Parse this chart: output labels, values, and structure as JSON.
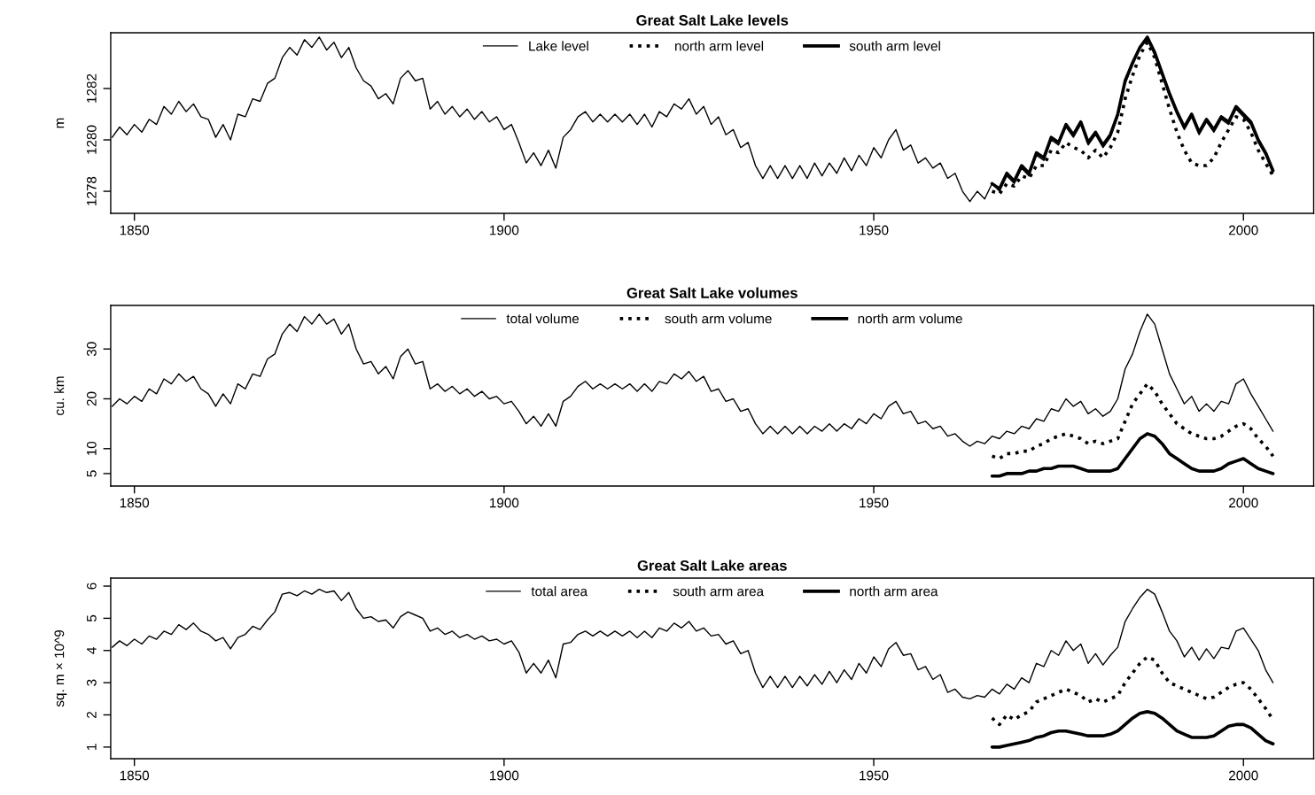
{
  "chart_data": [
    {
      "type": "line",
      "title": "Great Salt Lake levels",
      "ylabel": "m",
      "xlim": [
        1846.8,
        2009.5
      ],
      "xticks": [
        1850,
        1900,
        1950,
        2000
      ],
      "ylim": [
        1277.14,
        1284.17
      ],
      "yticks": [
        1278,
        1280,
        1282
      ],
      "grid": false,
      "legend": "top",
      "marker": "none",
      "series": [
        {
          "name": "Lake level",
          "color": "#000000",
          "line_style": "solid",
          "x": [
            1847,
            1848,
            1849,
            1850,
            1851,
            1852,
            1853,
            1854,
            1855,
            1856,
            1857,
            1858,
            1859,
            1860,
            1861,
            1862,
            1863,
            1864,
            1865,
            1866,
            1867,
            1868,
            1869,
            1870,
            1871,
            1872,
            1873,
            1874,
            1875,
            1876,
            1877,
            1878,
            1879,
            1880,
            1881,
            1882,
            1883,
            1884,
            1885,
            1886,
            1887,
            1888,
            1889,
            1890,
            1891,
            1892,
            1893,
            1894,
            1895,
            1896,
            1897,
            1898,
            1899,
            1900,
            1901,
            1902,
            1903,
            1904,
            1905,
            1906,
            1907,
            1908,
            1909,
            1910,
            1911,
            1912,
            1913,
            1914,
            1915,
            1916,
            1917,
            1918,
            1919,
            1920,
            1921,
            1922,
            1923,
            1924,
            1925,
            1926,
            1927,
            1928,
            1929,
            1930,
            1931,
            1932,
            1933,
            1934,
            1935,
            1936,
            1937,
            1938,
            1939,
            1940,
            1941,
            1942,
            1943,
            1944,
            1945,
            1946,
            1947,
            1948,
            1949,
            1950,
            1951,
            1952,
            1953,
            1954,
            1955,
            1956,
            1957,
            1958,
            1959,
            1960,
            1961,
            1962,
            1963,
            1964,
            1965,
            1966,
            1967,
            1968,
            1969,
            1970,
            1971,
            1972,
            1973,
            1974,
            1975,
            1976,
            1977,
            1978,
            1979,
            1980,
            1981,
            1982,
            1983,
            1984,
            1985,
            1986,
            1987,
            1988,
            1989,
            1990,
            1991,
            1992,
            1993,
            1994,
            1995,
            1996,
            1997,
            1998,
            1999,
            2000,
            2001,
            2002,
            2003,
            2004
          ],
          "values": [
            1280.1,
            1280.5,
            1280.2,
            1280.6,
            1280.3,
            1280.8,
            1280.6,
            1281.3,
            1281.0,
            1281.5,
            1281.1,
            1281.4,
            1280.9,
            1280.8,
            1280.1,
            1280.6,
            1280.0,
            1281.0,
            1280.9,
            1281.6,
            1281.5,
            1282.2,
            1282.4,
            1283.2,
            1283.6,
            1283.3,
            1283.9,
            1283.6,
            1284.0,
            1283.5,
            1283.8,
            1283.2,
            1283.6,
            1282.8,
            1282.3,
            1282.1,
            1281.6,
            1281.8,
            1281.4,
            1282.4,
            1282.7,
            1282.3,
            1282.4,
            1281.2,
            1281.5,
            1281.0,
            1281.3,
            1280.9,
            1281.2,
            1280.8,
            1281.1,
            1280.7,
            1280.9,
            1280.4,
            1280.6,
            1279.9,
            1279.1,
            1279.5,
            1279.0,
            1279.6,
            1278.9,
            1280.1,
            1280.4,
            1280.9,
            1281.1,
            1280.7,
            1281.0,
            1280.7,
            1281.0,
            1280.7,
            1281.0,
            1280.6,
            1281.0,
            1280.5,
            1281.1,
            1280.9,
            1281.4,
            1281.2,
            1281.6,
            1281.0,
            1281.3,
            1280.6,
            1280.9,
            1280.2,
            1280.4,
            1279.7,
            1279.9,
            1279.0,
            1278.5,
            1279.0,
            1278.5,
            1279.0,
            1278.5,
            1279.0,
            1278.5,
            1279.1,
            1278.6,
            1279.1,
            1278.7,
            1279.3,
            1278.8,
            1279.4,
            1279.0,
            1279.7,
            1279.3,
            1280.0,
            1280.4,
            1279.6,
            1279.8,
            1279.1,
            1279.3,
            1278.9,
            1279.1,
            1278.5,
            1278.7,
            1278.0,
            1277.6,
            1278.0,
            1277.7,
            1278.3,
            1278.0,
            1278.6,
            1278.3,
            1278.9,
            1278.6,
            1279.4,
            1279.2,
            1280.0,
            1279.8,
            1280.5,
            1280.1,
            1280.6,
            1279.8,
            1280.2,
            1279.7,
            1280.1,
            1280.9,
            1282.2,
            1282.9,
            1283.6,
            1283.9,
            1283.3,
            1282.5,
            1281.7,
            1281.0,
            1280.4,
            1280.9,
            1280.2,
            1280.7,
            1280.3,
            1280.8,
            1280.6,
            1281.2,
            1280.9,
            1280.6,
            1279.9,
            1279.4,
            1278.7
          ]
        },
        {
          "name": "north arm level",
          "color": "#000000",
          "line_style": "dotted",
          "x": [
            1966,
            1967,
            1968,
            1969,
            1970,
            1971,
            1972,
            1973,
            1974,
            1975,
            1976,
            1977,
            1978,
            1979,
            1980,
            1981,
            1982,
            1983,
            1984,
            1985,
            1986,
            1987,
            1988,
            1989,
            1990,
            1991,
            1992,
            1993,
            1994,
            1995,
            1996,
            1997,
            1998,
            1999,
            2000,
            2001,
            2002,
            2003,
            2004
          ],
          "values": [
            1278.0,
            1277.9,
            1278.3,
            1278.2,
            1278.6,
            1278.5,
            1279.0,
            1279.0,
            1279.6,
            1279.5,
            1279.9,
            1279.7,
            1279.6,
            1279.3,
            1279.6,
            1279.3,
            1279.7,
            1280.3,
            1281.6,
            1282.5,
            1283.3,
            1283.8,
            1283.2,
            1282.2,
            1281.2,
            1280.3,
            1279.6,
            1279.1,
            1279.0,
            1279.0,
            1279.3,
            1279.9,
            1280.4,
            1280.9,
            1280.8,
            1280.3,
            1279.6,
            1279.1,
            1278.6
          ]
        },
        {
          "name": "south arm level",
          "color": "#000000",
          "line_style": "solid",
          "x": [
            1966,
            1967,
            1968,
            1969,
            1970,
            1971,
            1972,
            1973,
            1974,
            1975,
            1976,
            1977,
            1978,
            1979,
            1980,
            1981,
            1982,
            1983,
            1984,
            1985,
            1986,
            1987,
            1988,
            1989,
            1990,
            1991,
            1992,
            1993,
            1994,
            1995,
            1996,
            1997,
            1998,
            1999,
            2000,
            2001,
            2002,
            2003,
            2004
          ],
          "values": [
            1278.3,
            1278.1,
            1278.7,
            1278.4,
            1279.0,
            1278.7,
            1279.5,
            1279.3,
            1280.1,
            1279.9,
            1280.6,
            1280.2,
            1280.7,
            1279.9,
            1280.3,
            1279.8,
            1280.2,
            1281.0,
            1282.3,
            1283.0,
            1283.6,
            1284.0,
            1283.4,
            1282.6,
            1281.8,
            1281.1,
            1280.5,
            1281.0,
            1280.3,
            1280.8,
            1280.4,
            1280.9,
            1280.7,
            1281.3,
            1281.0,
            1280.7,
            1280.0,
            1279.5,
            1278.8
          ]
        }
      ]
    },
    {
      "type": "line",
      "title": "Great Salt Lake volumes",
      "ylabel": "cu. km",
      "xlim": [
        1846.8,
        2009.5
      ],
      "xticks": [
        1850,
        1900,
        1950,
        2000
      ],
      "ylim": [
        2.5,
        38.75
      ],
      "yticks": [
        5,
        10,
        20,
        30
      ],
      "grid": false,
      "legend": "top",
      "marker": "none",
      "series": [
        {
          "name": "total volume",
          "color": "#000000",
          "line_style": "solid",
          "x": [
            1847,
            1848,
            1849,
            1850,
            1851,
            1852,
            1853,
            1854,
            1855,
            1856,
            1857,
            1858,
            1859,
            1860,
            1861,
            1862,
            1863,
            1864,
            1865,
            1866,
            1867,
            1868,
            1869,
            1870,
            1871,
            1872,
            1873,
            1874,
            1875,
            1876,
            1877,
            1878,
            1879,
            1880,
            1881,
            1882,
            1883,
            1884,
            1885,
            1886,
            1887,
            1888,
            1889,
            1890,
            1891,
            1892,
            1893,
            1894,
            1895,
            1896,
            1897,
            1898,
            1899,
            1900,
            1901,
            1902,
            1903,
            1904,
            1905,
            1906,
            1907,
            1908,
            1909,
            1910,
            1911,
            1912,
            1913,
            1914,
            1915,
            1916,
            1917,
            1918,
            1919,
            1920,
            1921,
            1922,
            1923,
            1924,
            1925,
            1926,
            1927,
            1928,
            1929,
            1930,
            1931,
            1932,
            1933,
            1934,
            1935,
            1936,
            1937,
            1938,
            1939,
            1940,
            1941,
            1942,
            1943,
            1944,
            1945,
            1946,
            1947,
            1948,
            1949,
            1950,
            1951,
            1952,
            1953,
            1954,
            1955,
            1956,
            1957,
            1958,
            1959,
            1960,
            1961,
            1962,
            1963,
            1964,
            1965,
            1966,
            1967,
            1968,
            1969,
            1970,
            1971,
            1972,
            1973,
            1974,
            1975,
            1976,
            1977,
            1978,
            1979,
            1980,
            1981,
            1982,
            1983,
            1984,
            1985,
            1986,
            1987,
            1988,
            1989,
            1990,
            1991,
            1992,
            1993,
            1994,
            1995,
            1996,
            1997,
            1998,
            1999,
            2000,
            2001,
            2002,
            2003,
            2004
          ],
          "values": [
            18.5,
            20,
            19,
            20.5,
            19.5,
            22,
            21,
            24,
            23,
            25,
            23.5,
            24.5,
            22,
            21,
            18.5,
            21,
            19,
            23,
            22,
            25,
            24.5,
            28,
            29,
            33,
            35,
            33.5,
            36.5,
            35,
            37,
            35,
            36,
            33,
            35,
            30,
            27,
            27.5,
            25,
            26.5,
            24,
            28.5,
            30,
            27,
            27.5,
            22,
            23,
            21.5,
            22.5,
            21,
            22,
            20.5,
            21.5,
            20,
            20.5,
            19,
            19.5,
            17.5,
            15,
            16.5,
            14.5,
            17,
            14.5,
            19.5,
            20.5,
            22.5,
            23.5,
            22,
            23,
            22,
            23,
            22,
            23,
            21.5,
            23,
            21.5,
            23.5,
            23,
            25,
            24,
            25.5,
            23.5,
            24.5,
            21.5,
            22,
            19.5,
            20,
            17.5,
            18,
            15,
            13,
            14.5,
            13,
            14.5,
            13,
            14.5,
            13,
            14.5,
            13.5,
            15,
            13.5,
            15,
            14,
            16,
            15,
            17,
            16,
            18.5,
            19.5,
            17,
            17.5,
            15,
            15.5,
            14,
            14.5,
            12.5,
            13,
            11.5,
            10.5,
            11.5,
            11,
            12.5,
            12,
            13.5,
            13,
            14.5,
            14,
            16,
            15.5,
            18,
            17.5,
            20,
            18.5,
            19.5,
            17,
            18,
            16.5,
            17.5,
            20,
            26,
            29,
            33.5,
            37,
            35,
            30,
            25,
            22,
            19,
            20.5,
            17.5,
            19,
            17.5,
            19.5,
            19,
            23,
            24,
            21,
            18.5,
            16,
            13.5
          ]
        },
        {
          "name": "south arm volume",
          "color": "#000000",
          "line_style": "dotted",
          "x": [
            1966,
            1967,
            1968,
            1969,
            1970,
            1971,
            1972,
            1973,
            1974,
            1975,
            1976,
            1977,
            1978,
            1979,
            1980,
            1981,
            1982,
            1983,
            1984,
            1985,
            1986,
            1987,
            1988,
            1989,
            1990,
            1991,
            1992,
            1993,
            1994,
            1995,
            1996,
            1997,
            1998,
            1999,
            2000,
            2001,
            2002,
            2003,
            2004
          ],
          "values": [
            8.5,
            8,
            9,
            9,
            9.5,
            9.5,
            10.5,
            11,
            12,
            12.5,
            13,
            12.5,
            12,
            11,
            11.5,
            11,
            11.5,
            12,
            15.5,
            19,
            21,
            23,
            21.5,
            19,
            17,
            15,
            14,
            13,
            12.5,
            12,
            12,
            12.5,
            13.5,
            14.5,
            15,
            14,
            12,
            10.5,
            8.5
          ]
        },
        {
          "name": "north arm volume",
          "color": "#000000",
          "line_style": "solid",
          "x": [
            1966,
            1967,
            1968,
            1969,
            1970,
            1971,
            1972,
            1973,
            1974,
            1975,
            1976,
            1977,
            1978,
            1979,
            1980,
            1981,
            1982,
            1983,
            1984,
            1985,
            1986,
            1987,
            1988,
            1989,
            1990,
            1991,
            1992,
            1993,
            1994,
            1995,
            1996,
            1997,
            1998,
            1999,
            2000,
            2001,
            2002,
            2003,
            2004
          ],
          "values": [
            4.5,
            4.5,
            5,
            5,
            5,
            5.5,
            5.5,
            6,
            6,
            6.5,
            6.5,
            6.5,
            6,
            5.5,
            5.5,
            5.5,
            5.5,
            6,
            8,
            10,
            12,
            13,
            12.5,
            11,
            9,
            8,
            7,
            6,
            5.5,
            5.5,
            5.5,
            6,
            7,
            7.5,
            8,
            7,
            6,
            5.5,
            5
          ]
        }
      ]
    },
    {
      "type": "line",
      "title": "Great Salt Lake areas",
      "ylabel": "sq. m × 10^9",
      "xlim": [
        1846.8,
        2009.5
      ],
      "xticks": [
        1850,
        1900,
        1950,
        2000
      ],
      "ylim": [
        0.64,
        6.25
      ],
      "yticks": [
        1,
        2,
        3,
        4,
        5,
        6
      ],
      "grid": false,
      "legend": "top",
      "marker": "none",
      "series": [
        {
          "name": "total area",
          "color": "#000000",
          "line_style": "solid",
          "x": [
            1847,
            1848,
            1849,
            1850,
            1851,
            1852,
            1853,
            1854,
            1855,
            1856,
            1857,
            1858,
            1859,
            1860,
            1861,
            1862,
            1863,
            1864,
            1865,
            1866,
            1867,
            1868,
            1869,
            1870,
            1871,
            1872,
            1873,
            1874,
            1875,
            1876,
            1877,
            1878,
            1879,
            1880,
            1881,
            1882,
            1883,
            1884,
            1885,
            1886,
            1887,
            1888,
            1889,
            1890,
            1891,
            1892,
            1893,
            1894,
            1895,
            1896,
            1897,
            1898,
            1899,
            1900,
            1901,
            1902,
            1903,
            1904,
            1905,
            1906,
            1907,
            1908,
            1909,
            1910,
            1911,
            1912,
            1913,
            1914,
            1915,
            1916,
            1917,
            1918,
            1919,
            1920,
            1921,
            1922,
            1923,
            1924,
            1925,
            1926,
            1927,
            1928,
            1929,
            1930,
            1931,
            1932,
            1933,
            1934,
            1935,
            1936,
            1937,
            1938,
            1939,
            1940,
            1941,
            1942,
            1943,
            1944,
            1945,
            1946,
            1947,
            1948,
            1949,
            1950,
            1951,
            1952,
            1953,
            1954,
            1955,
            1956,
            1957,
            1958,
            1959,
            1960,
            1961,
            1962,
            1963,
            1964,
            1965,
            1966,
            1967,
            1968,
            1969,
            1970,
            1971,
            1972,
            1973,
            1974,
            1975,
            1976,
            1977,
            1978,
            1979,
            1980,
            1981,
            1982,
            1983,
            1984,
            1985,
            1986,
            1987,
            1988,
            1989,
            1990,
            1991,
            1992,
            1993,
            1994,
            1995,
            1996,
            1997,
            1998,
            1999,
            2000,
            2001,
            2002,
            2003,
            2004
          ],
          "values": [
            4.1,
            4.3,
            4.15,
            4.35,
            4.2,
            4.45,
            4.35,
            4.6,
            4.5,
            4.8,
            4.65,
            4.85,
            4.6,
            4.5,
            4.3,
            4.4,
            4.05,
            4.4,
            4.5,
            4.75,
            4.65,
            4.95,
            5.2,
            5.75,
            5.8,
            5.7,
            5.85,
            5.75,
            5.9,
            5.8,
            5.85,
            5.55,
            5.8,
            5.3,
            5.0,
            5.05,
            4.9,
            4.95,
            4.7,
            5.05,
            5.2,
            5.1,
            5.0,
            4.6,
            4.7,
            4.5,
            4.6,
            4.4,
            4.5,
            4.35,
            4.45,
            4.3,
            4.35,
            4.2,
            4.3,
            3.95,
            3.3,
            3.6,
            3.3,
            3.7,
            3.15,
            4.2,
            4.25,
            4.5,
            4.6,
            4.45,
            4.6,
            4.45,
            4.6,
            4.45,
            4.6,
            4.4,
            4.6,
            4.4,
            4.7,
            4.6,
            4.85,
            4.7,
            4.9,
            4.6,
            4.7,
            4.45,
            4.5,
            4.2,
            4.3,
            3.9,
            4.0,
            3.3,
            2.85,
            3.2,
            2.85,
            3.2,
            2.85,
            3.2,
            2.9,
            3.25,
            2.95,
            3.35,
            3.0,
            3.4,
            3.1,
            3.6,
            3.3,
            3.8,
            3.5,
            4.05,
            4.25,
            3.85,
            3.9,
            3.4,
            3.5,
            3.1,
            3.25,
            2.7,
            2.8,
            2.55,
            2.5,
            2.6,
            2.55,
            2.8,
            2.65,
            2.95,
            2.8,
            3.15,
            3.0,
            3.6,
            3.5,
            4.0,
            3.85,
            4.3,
            4.0,
            4.2,
            3.6,
            3.9,
            3.55,
            3.85,
            4.1,
            4.9,
            5.3,
            5.65,
            5.9,
            5.75,
            5.2,
            4.6,
            4.3,
            3.8,
            4.1,
            3.7,
            4.05,
            3.75,
            4.1,
            4.05,
            4.6,
            4.7,
            4.35,
            4.0,
            3.4,
            3.0
          ]
        },
        {
          "name": "south arm area",
          "color": "#000000",
          "line_style": "dotted",
          "x": [
            1966,
            1967,
            1968,
            1969,
            1970,
            1971,
            1972,
            1973,
            1974,
            1975,
            1976,
            1977,
            1978,
            1979,
            1980,
            1981,
            1982,
            1983,
            1984,
            1985,
            1986,
            1987,
            1988,
            1989,
            1990,
            1991,
            1992,
            1993,
            1994,
            1995,
            1996,
            1997,
            1998,
            1999,
            2000,
            2001,
            2002,
            2003,
            2004
          ],
          "values": [
            1.9,
            1.7,
            2.0,
            1.85,
            2.0,
            2.1,
            2.4,
            2.5,
            2.6,
            2.7,
            2.8,
            2.7,
            2.6,
            2.4,
            2.5,
            2.4,
            2.5,
            2.6,
            3.0,
            3.3,
            3.6,
            3.8,
            3.7,
            3.3,
            3.0,
            2.9,
            2.8,
            2.7,
            2.6,
            2.5,
            2.55,
            2.7,
            2.85,
            2.95,
            3.0,
            2.8,
            2.5,
            2.2,
            1.85
          ]
        },
        {
          "name": "north arm area",
          "color": "#000000",
          "line_style": "solid",
          "x": [
            1966,
            1967,
            1968,
            1969,
            1970,
            1971,
            1972,
            1973,
            1974,
            1975,
            1976,
            1977,
            1978,
            1979,
            1980,
            1981,
            1982,
            1983,
            1984,
            1985,
            1986,
            1987,
            1988,
            1989,
            1990,
            1991,
            1992,
            1993,
            1994,
            1995,
            1996,
            1997,
            1998,
            1999,
            2000,
            2001,
            2002,
            2003,
            2004
          ],
          "values": [
            1.0,
            1.0,
            1.05,
            1.1,
            1.15,
            1.2,
            1.3,
            1.35,
            1.45,
            1.5,
            1.5,
            1.45,
            1.4,
            1.35,
            1.35,
            1.35,
            1.4,
            1.5,
            1.7,
            1.9,
            2.05,
            2.1,
            2.05,
            1.9,
            1.7,
            1.5,
            1.4,
            1.3,
            1.3,
            1.3,
            1.35,
            1.5,
            1.65,
            1.7,
            1.7,
            1.6,
            1.4,
            1.2,
            1.1
          ]
        }
      ]
    }
  ]
}
